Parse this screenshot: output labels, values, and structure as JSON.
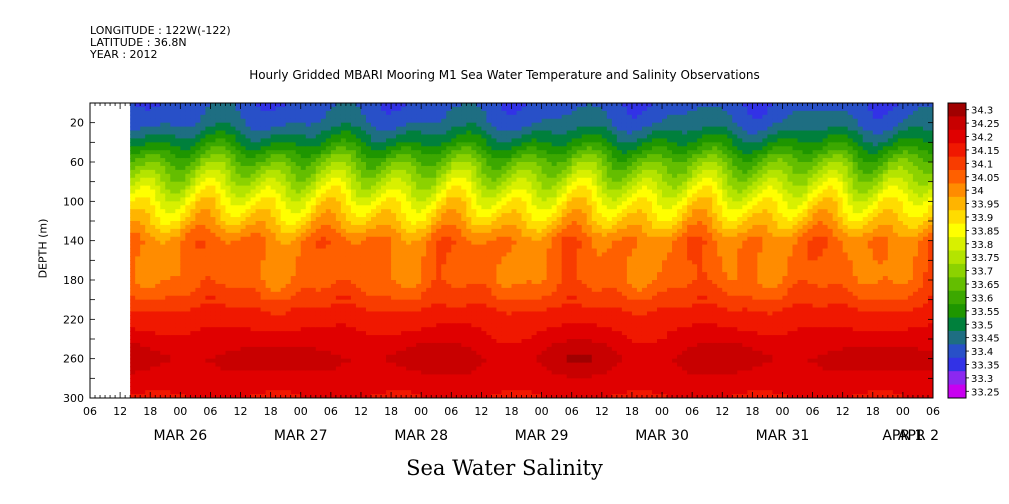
{
  "header": {
    "longitude": "LONGITUDE : 122W(-122)",
    "latitude": "LATITUDE : 36.8N",
    "year": "YEAR : 2012"
  },
  "chart_data": {
    "type": "heatmap",
    "title": "Hourly Gridded MBARI Mooring M1 Sea Water Temperature and Salinity Observations",
    "subtitle": "Sea Water Salinity",
    "ylabel": "DEPTH (m)",
    "xlabel": "",
    "x_range_hours": [
      0,
      168
    ],
    "data_start_hour": 8,
    "y_range": [
      300,
      0
    ],
    "y_ticks": [
      20,
      60,
      100,
      140,
      180,
      220,
      260,
      300
    ],
    "x_hour_ticks": [
      "06",
      "12",
      "18",
      "00",
      "06",
      "12",
      "18",
      "00",
      "06",
      "12",
      "18",
      "00",
      "06",
      "12",
      "18",
      "00",
      "06",
      "12",
      "18",
      "00",
      "06",
      "12",
      "18",
      "00",
      "06",
      "12",
      "18",
      "00",
      "06"
    ],
    "x_day_labels": [
      {
        "label": "MAR 26",
        "hour": 18
      },
      {
        "label": "MAR 27",
        "hour": 42
      },
      {
        "label": "MAR 28",
        "hour": 66
      },
      {
        "label": "MAR 29",
        "hour": 90
      },
      {
        "label": "MAR 30",
        "hour": 114
      },
      {
        "label": "MAR 31",
        "hour": 138
      },
      {
        "label": "APR  1",
        "hour": 162
      },
      {
        "label": "APR  2",
        "hour": 186
      }
    ],
    "colorbar": {
      "levels": [
        "34.3",
        "34.25",
        "34.2",
        "34.15",
        "34.1",
        "34.05",
        "34",
        "33.95",
        "33.9",
        "33.85",
        "33.8",
        "33.75",
        "33.7",
        "33.65",
        "33.6",
        "33.55",
        "33.5",
        "33.45",
        "33.4",
        "33.35",
        "33.3",
        "33.25"
      ],
      "colors": [
        "#a00000",
        "#c80000",
        "#e00000",
        "#f01800",
        "#f83c00",
        "#ff6000",
        "#ff8c00",
        "#ffb400",
        "#ffdc00",
        "#ffff00",
        "#d8f000",
        "#b4e400",
        "#8cd200",
        "#64be00",
        "#3ca800",
        "#1e9600",
        "#00803c",
        "#1e6e82",
        "#2850c8",
        "#3232e6",
        "#8c28f0",
        "#c800f0"
      ]
    },
    "profile": [
      {
        "depth": 0,
        "value": 33.42
      },
      {
        "depth": 20,
        "value": 33.45
      },
      {
        "depth": 40,
        "value": 33.55
      },
      {
        "depth": 60,
        "value": 33.68
      },
      {
        "depth": 80,
        "value": 33.78
      },
      {
        "depth": 100,
        "value": 33.88
      },
      {
        "depth": 120,
        "value": 33.96
      },
      {
        "depth": 140,
        "value": 34.06
      },
      {
        "depth": 180,
        "value": 34.08
      },
      {
        "depth": 210,
        "value": 34.16
      },
      {
        "depth": 240,
        "value": 34.22
      },
      {
        "depth": 260,
        "value": 34.27
      },
      {
        "depth": 280,
        "value": 34.23
      },
      {
        "depth": 300,
        "value": 34.2
      }
    ]
  }
}
